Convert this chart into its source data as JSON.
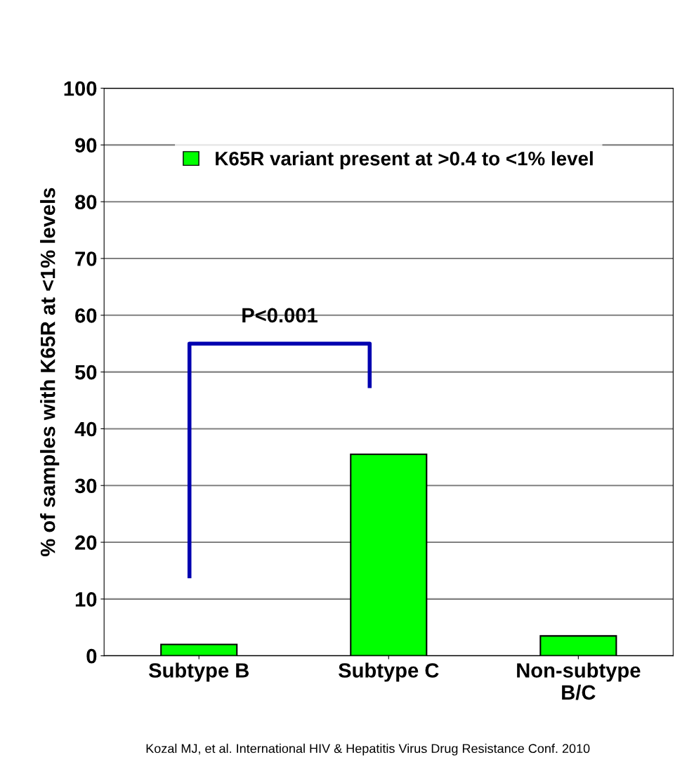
{
  "chart_data": {
    "type": "bar",
    "ylabel": "% of samples with K65R at <1% levels",
    "categories": [
      "Subtype B",
      "Subtype C",
      "Non-subtype\nB/C"
    ],
    "series": [
      {
        "name": "K65R variant present at >0.4 to <1% level",
        "color": "#00ff00",
        "values": [
          2,
          35.5,
          3.5
        ]
      }
    ],
    "ylim": [
      0,
      100
    ],
    "yticks": [
      0,
      10,
      20,
      30,
      40,
      50,
      60,
      70,
      80,
      90,
      100
    ],
    "grid": "y",
    "legend": "top",
    "annotations": [
      "P<0.001",
      "Kozal MJ, et al. International HIV & Hepatitis Virus Drug Resistance Conf. 2010"
    ]
  }
}
